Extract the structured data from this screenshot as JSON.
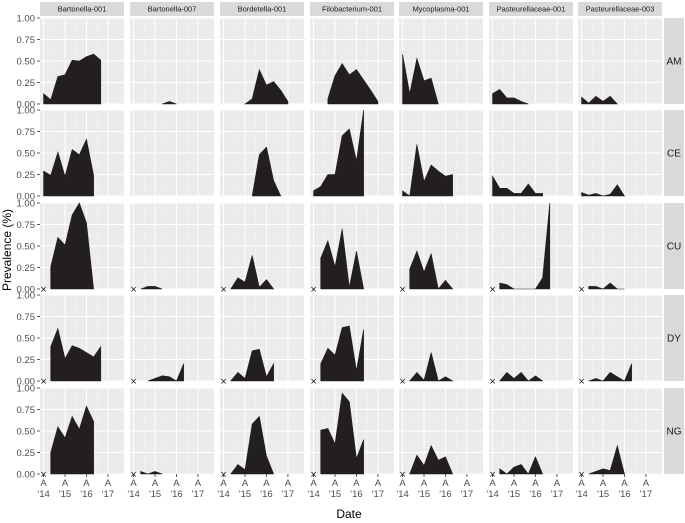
{
  "chart_data": {
    "type": "area",
    "xlabel": "Date",
    "ylabel": "Prevalence (%)",
    "ylim": [
      0,
      1
    ],
    "y_ticks": [
      "0.00",
      "0.25",
      "0.50",
      "0.75",
      "1.00"
    ],
    "x_tick_letters": [
      "A",
      "A",
      "A",
      "A"
    ],
    "x_tick_years": [
      "'14",
      "'15",
      "'16",
      "'17"
    ],
    "x_tick_dates": [
      "2014-04",
      "2015-04",
      "2016-04",
      "2017-04"
    ],
    "xlim": [
      "2014-02",
      "2018-01"
    ],
    "missing_marker": "×",
    "grid": true,
    "columns": [
      "Bartonella-001",
      "Bartonella-007",
      "Bordetella-001",
      "Filobacterium-001",
      "Mycoplasma-001",
      "Pasteurellaceae-001",
      "Pasteurellaceae-003"
    ],
    "rows": [
      "AM",
      "CE",
      "CU",
      "DY",
      "NG"
    ],
    "x_dates": {
      "AM": [
        "2014-04",
        "2014-08",
        "2014-12",
        "2015-04",
        "2015-08",
        "2015-12",
        "2016-04",
        "2016-08",
        "2016-12",
        "2017-04",
        "2017-08"
      ],
      "CE": [
        "2014-04",
        "2014-08",
        "2014-12",
        "2015-04",
        "2015-08",
        "2015-12",
        "2016-04",
        "2016-08",
        "2016-12",
        "2017-04",
        "2017-08"
      ],
      "CU": [
        "2014-08",
        "2014-12",
        "2015-04",
        "2015-08",
        "2015-12",
        "2016-04",
        "2016-08",
        "2016-12",
        "2017-04",
        "2017-08"
      ],
      "DY": [
        "2014-08",
        "2014-12",
        "2015-04",
        "2015-08",
        "2015-12",
        "2016-04",
        "2016-08",
        "2016-12",
        "2017-04",
        "2017-08"
      ],
      "NG": [
        "2014-08",
        "2014-12",
        "2015-04",
        "2015-08",
        "2015-12",
        "2016-04",
        "2016-08",
        "2016-12",
        "2017-04",
        "2017-08"
      ]
    },
    "missing": {
      "CU": "2014-04",
      "DY": "2014-04",
      "NG": "2014-04"
    },
    "values": {
      "AM": {
        "Bartonella-001": [
          0.12,
          0.05,
          0.32,
          0.34,
          0.51,
          0.5,
          0.55,
          0.58,
          0.51,
          null,
          null
        ],
        "Bartonella-007": [
          null,
          null,
          null,
          null,
          0.0,
          0.03,
          0.0,
          null,
          null,
          null,
          null
        ],
        "Bordetella-001": [
          null,
          null,
          null,
          0.0,
          0.06,
          0.4,
          0.22,
          0.26,
          0.16,
          0.03,
          null
        ],
        "Filobacterium-001": [
          null,
          null,
          0.06,
          0.33,
          0.47,
          0.34,
          0.4,
          0.28,
          0.16,
          0.03,
          null
        ],
        "Mycoplasma-001": [
          0.58,
          0.12,
          0.53,
          0.27,
          0.3,
          0.0,
          null,
          null,
          null,
          null,
          null
        ],
        "Pasteurellaceae-001": [
          0.12,
          0.17,
          0.07,
          0.07,
          0.03,
          0.0,
          null,
          null,
          null,
          null,
          null
        ],
        "Pasteurellaceae-003": [
          0.08,
          0.01,
          0.09,
          0.03,
          0.09,
          0.0,
          null,
          null,
          null,
          null,
          null
        ]
      },
      "CE": {
        "Bartonella-001": [
          0.29,
          0.24,
          0.51,
          0.23,
          0.54,
          0.48,
          0.66,
          0.24,
          null,
          null,
          null
        ],
        "Bartonella-007": [
          null,
          null,
          null,
          null,
          null,
          null,
          null,
          null,
          null,
          null,
          null
        ],
        "Bordetella-001": [
          null,
          null,
          null,
          null,
          0.0,
          0.48,
          0.57,
          0.18,
          0.0,
          null,
          null
        ],
        "Filobacterium-001": [
          0.06,
          0.11,
          0.25,
          0.25,
          0.7,
          0.78,
          0.41,
          1.0,
          null,
          null,
          null
        ],
        "Mycoplasma-001": [
          0.06,
          0.0,
          0.6,
          0.17,
          0.36,
          0.29,
          0.23,
          0.25,
          null,
          null,
          null
        ],
        "Pasteurellaceae-001": [
          0.23,
          0.09,
          0.09,
          0.03,
          0.03,
          0.14,
          0.03,
          0.03,
          null,
          null,
          null
        ],
        "Pasteurellaceae-003": [
          0.04,
          0.01,
          0.03,
          0.0,
          0.02,
          0.13,
          0.0,
          null,
          null,
          null,
          null
        ]
      },
      "CU": {
        "Bartonella-001": [
          0.26,
          0.6,
          0.51,
          0.86,
          1.0,
          0.77,
          0.0,
          null,
          null,
          null
        ],
        "Bartonella-007": [
          0.0,
          0.03,
          0.03,
          0.0,
          null,
          null,
          null,
          null,
          null,
          null
        ],
        "Bordetella-001": [
          0.0,
          0.13,
          0.08,
          0.39,
          0.02,
          0.11,
          0.0,
          null,
          null,
          null
        ],
        "Filobacterium-001": [
          0.36,
          0.56,
          0.26,
          0.7,
          0.02,
          0.44,
          0.0,
          null,
          null,
          null
        ],
        "Mycoplasma-001": [
          0.23,
          0.44,
          0.2,
          0.41,
          0.0,
          0.1,
          0.0,
          null,
          null,
          null
        ],
        "Pasteurellaceae-001": [
          0.07,
          0.05,
          0.0,
          0.0,
          0.0,
          0.0,
          0.13,
          1.0,
          null,
          null
        ],
        "Pasteurellaceae-003": [
          0.03,
          0.03,
          0.0,
          0.07,
          0.0,
          0.0,
          null,
          null,
          null,
          null
        ]
      },
      "DY": {
        "Bartonella-001": [
          0.4,
          0.61,
          0.26,
          0.41,
          0.38,
          0.33,
          0.28,
          0.4,
          null,
          null
        ],
        "Bartonella-007": [
          null,
          0.0,
          0.03,
          0.06,
          0.05,
          0.0,
          0.2,
          null,
          null,
          null
        ],
        "Bordetella-001": [
          0.0,
          0.1,
          0.03,
          0.35,
          0.37,
          0.05,
          0.2,
          null,
          null,
          null
        ],
        "Filobacterium-001": [
          0.2,
          0.38,
          0.3,
          0.62,
          0.64,
          0.12,
          0.6,
          null,
          null,
          null
        ],
        "Mycoplasma-001": [
          0.0,
          0.1,
          0.01,
          0.33,
          0.0,
          0.05,
          0.0,
          null,
          null,
          null
        ],
        "Pasteurellaceae-001": [
          0.0,
          0.1,
          0.03,
          0.1,
          0.0,
          0.06,
          0.0,
          null,
          null,
          null
        ],
        "Pasteurellaceae-003": [
          0.0,
          0.03,
          0.0,
          0.1,
          0.05,
          0.0,
          0.2,
          null,
          null,
          null
        ]
      },
      "NG": {
        "Bartonella-001": [
          0.25,
          0.55,
          0.42,
          0.67,
          0.52,
          0.79,
          0.61,
          null,
          null,
          null
        ],
        "Bartonella-007": [
          0.03,
          0.0,
          0.03,
          0.0,
          null,
          null,
          null,
          null,
          null,
          null
        ],
        "Bordetella-001": [
          0.0,
          0.11,
          0.05,
          0.58,
          0.67,
          0.21,
          0.0,
          null,
          null,
          null
        ],
        "Filobacterium-001": [
          0.51,
          0.53,
          0.35,
          0.94,
          0.84,
          0.18,
          0.4,
          null,
          null,
          null
        ],
        "Mycoplasma-001": [
          0.0,
          0.22,
          0.1,
          0.33,
          0.16,
          0.2,
          0.0,
          null,
          null,
          null
        ],
        "Pasteurellaceae-001": [
          0.06,
          0.0,
          0.08,
          0.11,
          0.0,
          0.2,
          0.0,
          null,
          null,
          null
        ],
        "Pasteurellaceae-003": [
          0.0,
          0.03,
          0.06,
          0.04,
          0.33,
          0.0,
          null,
          null,
          null,
          null
        ]
      }
    },
    "colors": {
      "fill": "#231f20",
      "panel_bg": "#ebebeb",
      "grid_major": "#ffffff",
      "grid_minor": "#f5f5f5",
      "strip_bg": "#d9d9d9"
    }
  }
}
